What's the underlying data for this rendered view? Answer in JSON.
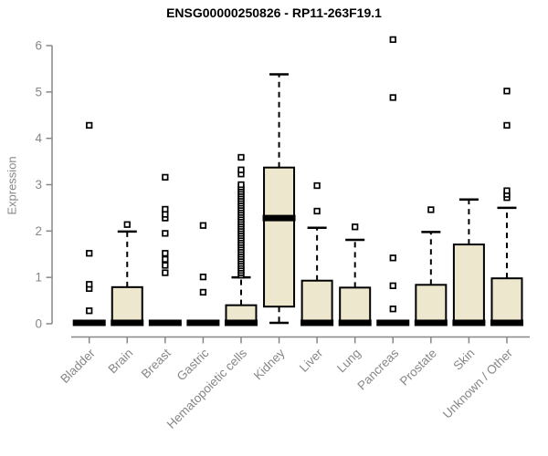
{
  "header": {
    "title": "ENSG00000250826 - RP11-263F19.1"
  },
  "chart_data": {
    "type": "boxplot",
    "title": "ENSG00000250826 - RP11-263F19.1",
    "xlabel": "",
    "ylabel": "Expression",
    "ylim": [
      0,
      6.2
    ],
    "yticks": [
      0,
      1,
      2,
      3,
      4,
      5,
      6
    ],
    "grid": "off",
    "legend": "none",
    "colors": {
      "box_fill": "#EDE8CD",
      "box_stroke": "#000000",
      "axis": "#878787",
      "tick_text": "#878787",
      "title_text": "#000000"
    },
    "categories": [
      "Bladder",
      "Brain",
      "Breast",
      "Gastric",
      "Hematopoietic cells",
      "Kidney",
      "Liver",
      "Lung",
      "Pancreas",
      "Prostate",
      "Skin",
      "Unknown / Other"
    ],
    "series": [
      {
        "category": "Bladder",
        "low": 0,
        "q1": 0,
        "median": 0.02,
        "q3": 0.03,
        "high": 0.03,
        "outliers": [
          0.28,
          0.76,
          0.85,
          1.52,
          4.28
        ]
      },
      {
        "category": "Brain",
        "low": 0,
        "q1": 0,
        "median": 0.02,
        "q3": 0.79,
        "high": 1.99,
        "outliers": [
          2.14
        ]
      },
      {
        "category": "Breast",
        "low": 0,
        "q1": 0,
        "median": 0.02,
        "q3": 0.03,
        "high": 0.03,
        "outliers": [
          1.1,
          1.26,
          1.39,
          1.52,
          1.95,
          2.28,
          2.36,
          2.47,
          3.16
        ]
      },
      {
        "category": "Gastric",
        "low": 0,
        "q1": 0,
        "median": 0.02,
        "q3": 0.03,
        "high": 0.03,
        "outliers": [
          0.68,
          1.01,
          2.12
        ]
      },
      {
        "category": "Hematopoietic cells",
        "low": 0,
        "q1": 0,
        "median": 0.02,
        "q3": 0.4,
        "high": 1.0,
        "outliers": [
          1.05,
          1.1,
          1.15,
          1.2,
          1.25,
          1.3,
          1.35,
          1.4,
          1.45,
          1.5,
          1.55,
          1.6,
          1.65,
          1.7,
          1.75,
          1.8,
          1.85,
          1.9,
          1.95,
          2.0,
          2.05,
          2.1,
          2.15,
          2.2,
          2.25,
          2.3,
          2.35,
          2.4,
          2.45,
          2.5,
          2.55,
          2.6,
          2.65,
          2.7,
          2.75,
          2.8,
          2.85,
          2.9,
          2.95,
          3.0,
          3.23,
          3.32,
          3.59
        ]
      },
      {
        "category": "Kidney",
        "low": 0.02,
        "q1": 0.37,
        "median": 2.28,
        "q3": 3.37,
        "high": 5.38,
        "outliers": []
      },
      {
        "category": "Liver",
        "low": 0,
        "q1": 0,
        "median": 0.02,
        "q3": 0.93,
        "high": 2.07,
        "outliers": [
          2.43,
          2.98
        ]
      },
      {
        "category": "Lung",
        "low": 0,
        "q1": 0,
        "median": 0.02,
        "q3": 0.78,
        "high": 1.81,
        "outliers": [
          2.09
        ]
      },
      {
        "category": "Pancreas",
        "low": 0,
        "q1": 0,
        "median": 0.02,
        "q3": 0.03,
        "high": 0.03,
        "outliers": [
          0.32,
          0.82,
          1.42,
          4.88,
          6.13
        ]
      },
      {
        "category": "Prostate",
        "low": 0,
        "q1": 0,
        "median": 0.02,
        "q3": 0.84,
        "high": 1.98,
        "outliers": [
          2.46
        ]
      },
      {
        "category": "Skin",
        "low": 0,
        "q1": 0,
        "median": 0.02,
        "q3": 1.71,
        "high": 2.68,
        "outliers": []
      },
      {
        "category": "Unknown / Other",
        "low": 0,
        "q1": 0,
        "median": 0.02,
        "q3": 0.98,
        "high": 2.5,
        "outliers": [
          2.72,
          2.79,
          2.87,
          4.28,
          5.02
        ]
      }
    ]
  }
}
